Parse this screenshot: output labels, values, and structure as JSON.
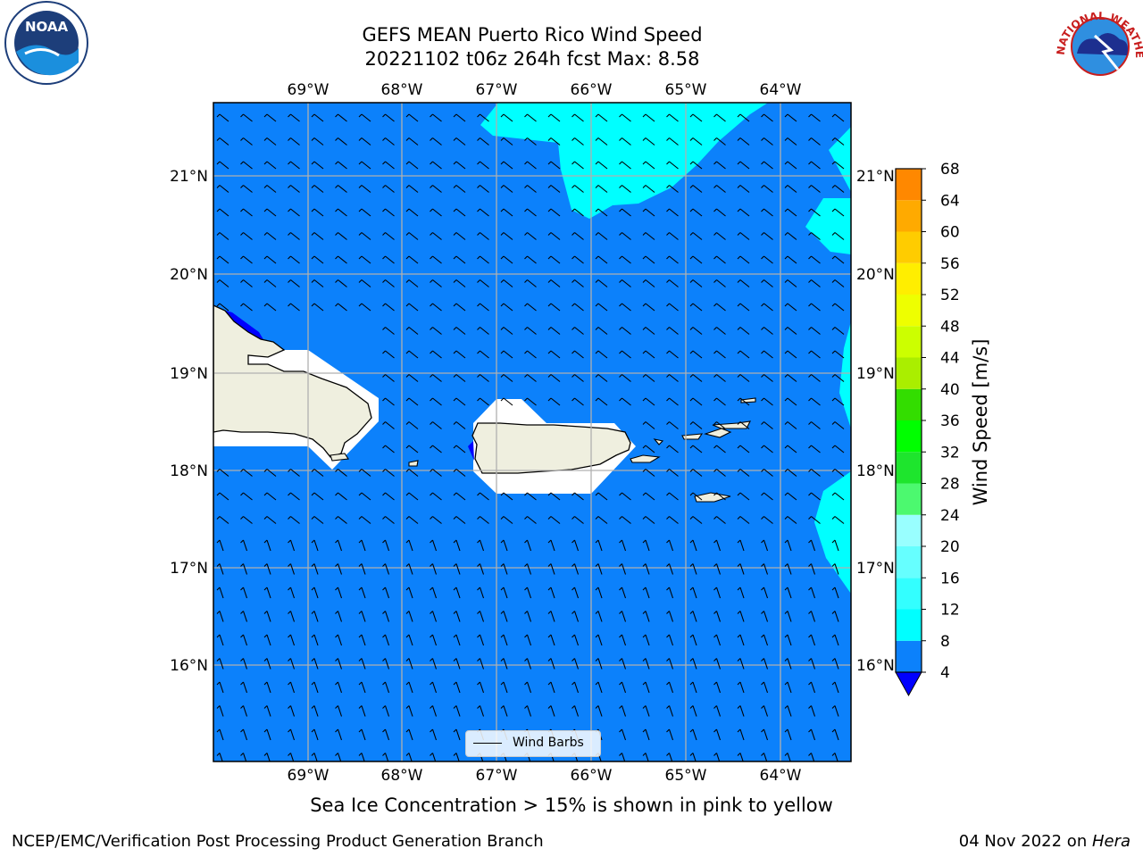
{
  "title_line1": "GEFS MEAN Puerto Rico Wind Speed",
  "title_line2": "20221102 t06z 264h fcst   Max: 8.58",
  "caption": "Sea Ice Concentration > 15% is shown in pink to yellow",
  "footer_left": "NCEP/EMC/Verification Post Processing Product Generation Branch",
  "footer_date": "04 Nov 2022 on ",
  "footer_host": "Hera",
  "legend_label": "Wind Barbs",
  "colorbar_label": "Wind Speed [m/s]",
  "colorbar_ticks": [
    "4",
    "8",
    "12",
    "16",
    "20",
    "24",
    "28",
    "32",
    "36",
    "40",
    "44",
    "48",
    "52",
    "56",
    "60",
    "64",
    "68"
  ],
  "colorbar_colors": [
    "#0c81fb",
    "#00ffff",
    "#33ffff",
    "#66ffff",
    "#99ffff",
    "#4cf96f",
    "#1ee52d",
    "#00ff00",
    "#33dd00",
    "#aaee00",
    "#ccff00",
    "#eeff00",
    "#ffee00",
    "#ffcc00",
    "#ffaa00",
    "#ff8800",
    "#ff6600",
    "#ff4400",
    "#ff2200",
    "#ff0000"
  ],
  "colorbar_under_color": "#0000ff",
  "lon_ticks": [
    "69°W",
    "68°W",
    "67°W",
    "66°W",
    "65°W",
    "64°W"
  ],
  "lat_ticks": [
    "21°N",
    "20°N",
    "19°N",
    "18°N",
    "17°N",
    "16°N"
  ],
  "colors": {
    "ocean": "#0c81fb",
    "land": "#efefdf",
    "mask": "#ffffff",
    "high": "#00ffff",
    "grid": "#b0b0b0",
    "low": "#0000ff"
  },
  "logos": {
    "noaa": "NOAA",
    "nws": "NATIONAL WEATHER SERVICE"
  }
}
